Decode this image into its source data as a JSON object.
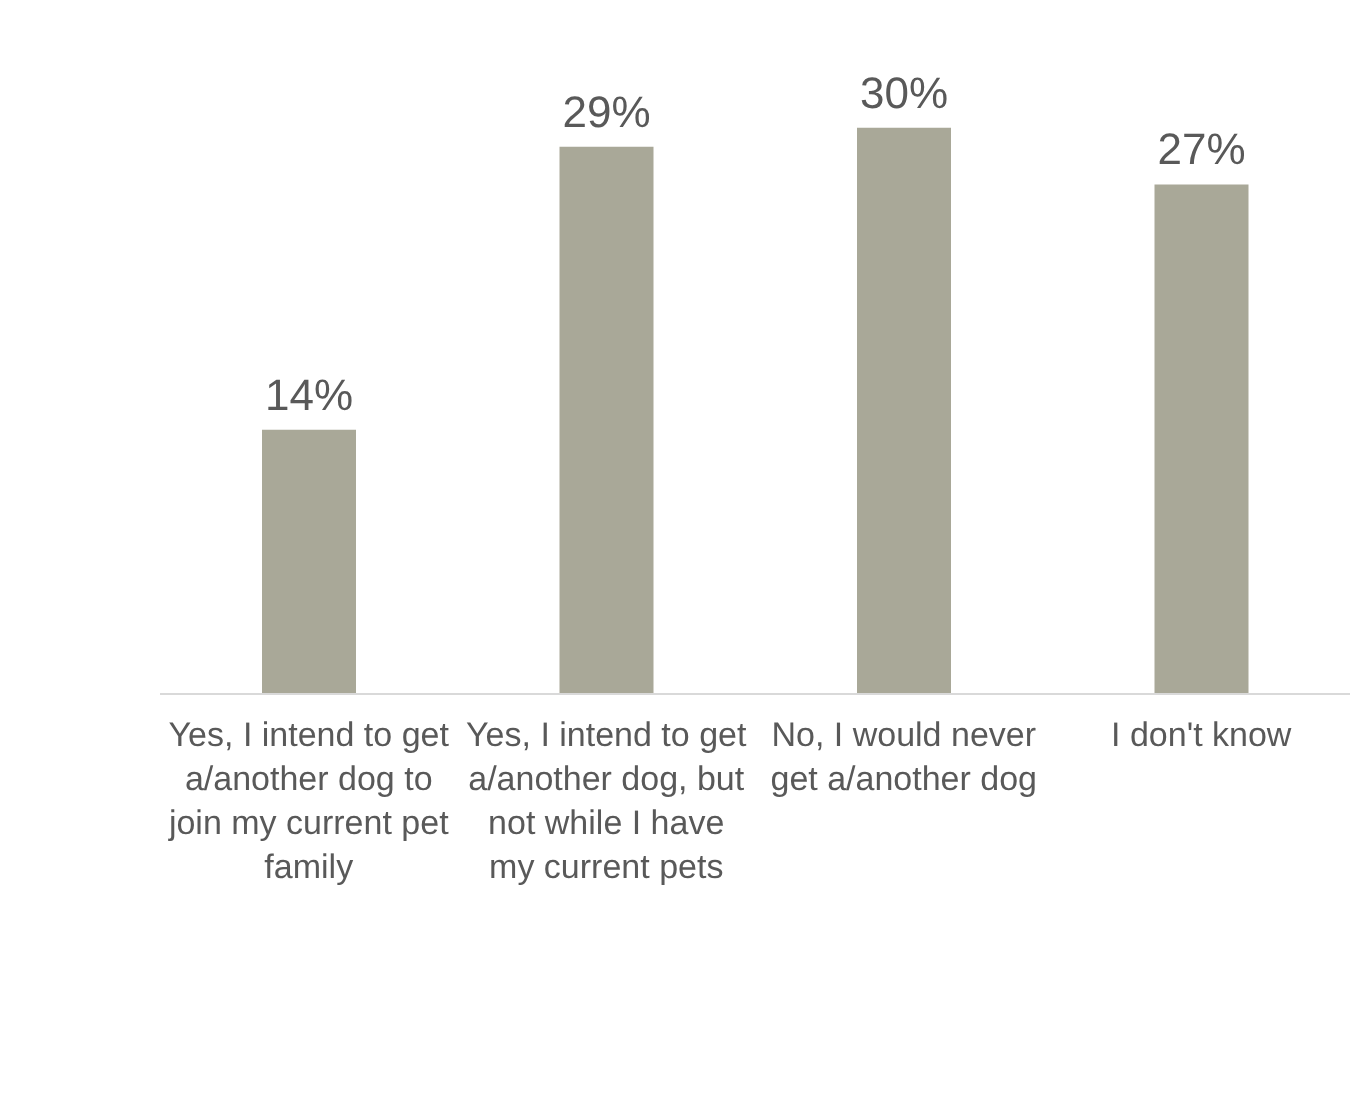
{
  "chart_data": {
    "type": "bar",
    "categories": [
      "Yes, I intend to get a/another dog to join my current pet family",
      "Yes, I intend to get a/another dog, but not while I have my current pets",
      "No, I would never get a/another dog",
      "I don't know"
    ],
    "values": [
      14,
      29,
      30,
      27
    ],
    "color": "#a9a898",
    "value_labels": [
      "14%",
      "29%",
      "30%",
      "27%"
    ]
  }
}
